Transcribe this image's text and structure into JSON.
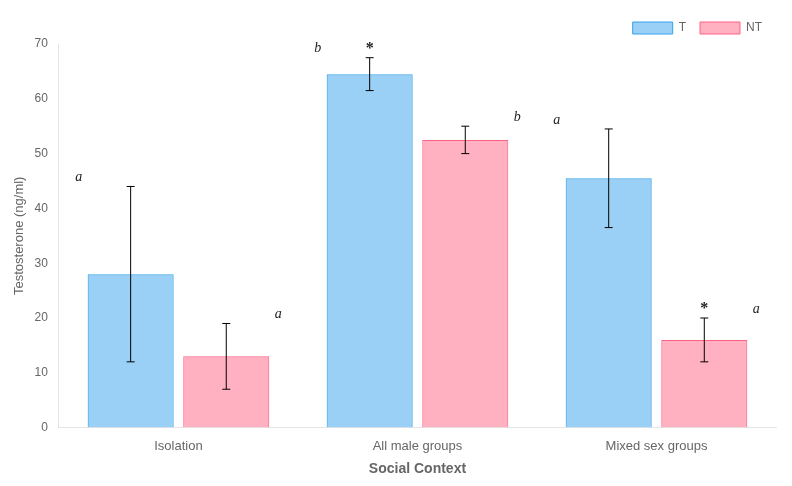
{
  "chart_data": {
    "type": "bar",
    "categories": [
      "Isolation",
      "All male groups",
      "Mixed sex groups"
    ],
    "series": [
      {
        "name": "T",
        "values": [
          28,
          64.5,
          45.5
        ],
        "errors": [
          16,
          3,
          9
        ],
        "letters": [
          "a",
          "b",
          "a"
        ],
        "stars": [
          null,
          "*",
          null
        ]
      },
      {
        "name": "NT",
        "values": [
          13,
          52.5,
          16
        ],
        "errors": [
          6,
          2.5,
          4
        ],
        "letters": [
          "a",
          "b",
          "a"
        ],
        "stars": [
          null,
          null,
          "*"
        ]
      }
    ],
    "xlabel": "Social Context",
    "ylabel": "Testosterone (ng/ml)",
    "ylim": [
      0,
      70
    ],
    "yticks": [
      0,
      10,
      20,
      30,
      40,
      50,
      60,
      70
    ],
    "grid": false,
    "legend": "upper right"
  }
}
